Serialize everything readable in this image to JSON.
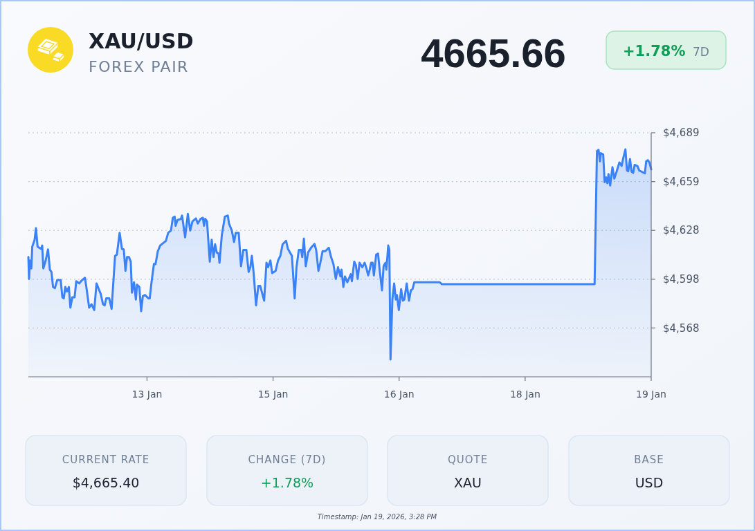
{
  "chart_data": {
    "type": "area",
    "title": "XAU/USD",
    "subtitle": "FOREX PAIR",
    "annotations": [
      "4665.66",
      "+1.78%",
      "7D",
      "CURRENT RATE",
      "$4,665.40",
      "CHANGE (7D)",
      "+1.78%",
      "QUOTE",
      "XAU",
      "BASE",
      "USD",
      "Timestamp: Jan 19, 2026, 3:28 PM"
    ],
    "color": "#3b82f6",
    "x": [
      "2026-01-12T15:28",
      "2026-01-12T15:39",
      "2026-01-12T15:54",
      "2026-01-12T16:16",
      "2026-01-12T16:31",
      "2026-01-12T17:09",
      "2026-01-12T17:31",
      "2026-01-12T17:57",
      "2026-01-12T18:53",
      "2026-01-12T19:12",
      "2026-01-12T19:30",
      "2026-01-12T20:08",
      "2026-01-12T20:46",
      "2026-01-12T21:16",
      "2026-01-12T21:42",
      "2026-01-12T22:07",
      "2026-01-12T22:38",
      "2026-01-12T23:15",
      "2026-01-13T00:11",
      "2026-01-13T00:38",
      "2026-01-13T01:01",
      "2026-01-13T01:26",
      "2026-01-13T01:52",
      "2026-01-13T02:23",
      "2026-01-13T02:48",
      "2026-01-13T03:19",
      "2026-01-13T03:56",
      "2026-01-13T04:23",
      "2026-01-13T05:11",
      "2026-01-13T05:48",
      "2026-01-13T06:44",
      "2026-01-13T07:14",
      "2026-01-13T07:51",
      "2026-01-13T08:29",
      "2026-01-13T09:14",
      "2026-01-13T09:51",
      "2026-01-13T10:28",
      "2026-01-13T10:59",
      "2026-01-13T11:36",
      "2026-01-13T12:03",
      "2026-01-13T12:28",
      "2026-01-13T13:17",
      "2026-01-13T13:55",
      "2026-01-13T14:51",
      "2026-01-13T15:20",
      "2026-01-13T16:05",
      "2026-01-13T16:43",
      "2026-01-13T17:12",
      "2026-01-13T17:39",
      "2026-01-13T18:05",
      "2026-01-13T18:35",
      "2026-01-13T19:05",
      "2026-01-13T19:24",
      "2026-01-13T19:57",
      "2026-01-13T20:28",
      "2026-01-13T20:46",
      "2026-01-13T21:24",
      "2026-01-13T21:53",
      "2026-01-13T22:20",
      "2026-01-13T22:57",
      "2026-01-13T23:53",
      "2026-01-14T00:12",
      "2026-01-14T00:41",
      "2026-01-14T01:20",
      "2026-01-14T01:45",
      "2026-01-14T02:23",
      "2026-01-14T03:01",
      "2026-01-14T03:49",
      "2026-01-14T04:34",
      "2026-01-14T05:11",
      "2026-01-14T05:56",
      "2026-01-14T06:26",
      "2026-01-14T06:56",
      "2026-01-14T07:11",
      "2026-01-14T07:41",
      "2026-01-14T08:37",
      "2026-01-14T08:55",
      "2026-01-14T09:45",
      "2026-01-14T10:29",
      "2026-01-14T11:07",
      "2026-01-14T11:44",
      "2026-01-14T12:40",
      "2026-01-14T13:10",
      "2026-01-14T13:55",
      "2026-01-14T14:32",
      "2026-01-14T14:51",
      "2026-01-14T15:10",
      "2026-01-14T15:39",
      "2026-01-14T16:24",
      "2026-01-14T16:55",
      "2026-01-14T17:25",
      "2026-01-14T17:50",
      "2026-01-14T18:16",
      "2026-01-14T18:47",
      "2026-01-14T19:01",
      "2026-01-14T19:39",
      "2026-01-14T20:28",
      "2026-01-14T21:16",
      "2026-01-14T21:35",
      "2026-01-14T22:20",
      "2026-01-14T22:57",
      "2026-01-14T23:24",
      "2026-01-15T00:12",
      "2026-01-15T00:49",
      "2026-01-15T01:27",
      "2026-01-15T02:16",
      "2026-01-15T02:53",
      "2026-01-15T03:20",
      "2026-01-15T03:45",
      "2026-01-15T04:16",
      "2026-01-15T04:53",
      "2026-01-15T05:30",
      "2026-01-15T06:00",
      "2026-01-15T07:04",
      "2026-01-15T07:41",
      "2026-01-15T08:07",
      "2026-01-15T08:45",
      "2026-01-15T09:14",
      "2026-01-15T10:10",
      "2026-01-15T10:49",
      "2026-01-15T11:26",
      "2026-01-15T12:03",
      "2026-01-15T12:59",
      "2026-01-15T13:29",
      "2026-01-15T14:33",
      "2026-01-15T15:18",
      "2026-01-15T15:47",
      "2026-01-15T16:25",
      "2026-01-15T17:02",
      "2026-01-15T17:21",
      "2026-01-15T17:47",
      "2026-01-15T18:17",
      "2026-01-15T18:55",
      "2026-01-15T19:43",
      "2026-01-15T20:39",
      "2026-01-15T21:06",
      "2026-01-15T21:43",
      "2026-01-15T22:13",
      "2026-01-15T22:50",
      "2026-01-15T23:35",
      "2026-01-16T00:30",
      "2026-01-16T01:07",
      "2026-01-16T01:45",
      "2026-01-16T02:23",
      "2026-01-16T02:59",
      "2026-01-16T03:38",
      "2026-01-16T03:56",
      "2026-01-16T04:26",
      "2026-01-16T04:52",
      "2026-01-16T05:30",
      "2026-01-16T06:26",
      "2026-01-16T06:44",
      "2026-01-16T07:22",
      "2026-01-16T07:48",
      "2026-01-16T08:18",
      "2026-01-16T08:47",
      "2026-01-16T09:32",
      "2026-01-16T10:10",
      "2026-01-16T10:40",
      "2026-01-16T11:07",
      "2026-01-16T11:32",
      "2026-01-16T11:55",
      "2026-01-16T12:20",
      "2026-01-16T12:40",
      "2026-01-16T13:17",
      "2026-01-16T13:47",
      "2026-01-16T14:13",
      "2026-01-16T14:51",
      "2026-01-16T15:17",
      "2026-01-16T15:47",
      "2026-01-16T16:02",
      "2026-01-16T16:32",
      "2026-01-16T16:50",
      "2026-01-16T17:09",
      "2026-01-16T17:39",
      "2026-01-16T18:08",
      "2026-01-16T18:35",
      "2026-01-16T18:53",
      "2026-01-16T19:24",
      "2026-01-16T20:01",
      "2026-01-16T20:28",
      "2026-01-16T20:53",
      "2026-01-16T21:31",
      "2026-01-16T22:08",
      "2026-01-16T22:38",
      "2026-01-16T23:05",
      "2026-01-16T23:34",
      "2026-01-17T06:26",
      "2026-01-17T07:03",
      "2026-01-19T00:12",
      "2026-01-19T00:50",
      "2026-01-19T01:16",
      "2026-01-19T01:39",
      "2026-01-19T01:53",
      "2026-01-19T02:31",
      "2026-01-19T02:54",
      "2026-01-19T03:20",
      "2026-01-19T03:39",
      "2026-01-19T03:57",
      "2026-01-19T04:24",
      "2026-01-19T05:01",
      "2026-01-19T05:31",
      "2026-01-19T06:08",
      "2026-01-19T06:53",
      "2026-01-19T07:30",
      "2026-01-19T07:52",
      "2026-01-19T08:31",
      "2026-01-19T08:56",
      "2026-01-19T09:16",
      "2026-01-19T09:45",
      "2026-01-19T10:11",
      "2026-01-19T10:37",
      "2026-01-19T11:00",
      "2026-01-19T11:45",
      "2026-01-19T12:15",
      "2026-01-19T12:52",
      "2026-01-19T13:45",
      "2026-01-19T14:07",
      "2026-01-19T14:33",
      "2026-01-19T14:59",
      "2026-01-19T15:28"
    ],
    "values": [
      4611.9,
      4598.3,
      4609.7,
      4604.8,
      4618.3,
      4622.6,
      4629.8,
      4618.3,
      4616.9,
      4619.0,
      4604.8,
      4609.7,
      4616.6,
      4604.0,
      4602.6,
      4593.3,
      4592.6,
      4597.6,
      4597.6,
      4586.9,
      4586.2,
      4593.3,
      4590.5,
      4593.3,
      4580.5,
      4586.9,
      4586.9,
      4596.9,
      4595.5,
      4597.2,
      4599.0,
      4591.2,
      4580.5,
      4582.6,
      4579.0,
      4595.5,
      4591.9,
      4589.0,
      4582.6,
      4581.9,
      4586.2,
      4586.2,
      4579.7,
      4612.6,
      4613.3,
      4626.9,
      4616.9,
      4616.6,
      4603.3,
      4611.9,
      4611.9,
      4609.0,
      4589.8,
      4596.2,
      4585.5,
      4594.7,
      4593.3,
      4578.3,
      4587.6,
      4588.3,
      4586.2,
      4586.2,
      4596.2,
      4607.6,
      4607.4,
      4615.5,
      4619.0,
      4620.5,
      4621.9,
      4626.9,
      4628.3,
      4636.2,
      4636.9,
      4631.2,
      4634.8,
      4635.5,
      4637.6,
      4624.1,
      4638.6,
      4628.3,
      4634.0,
      4635.8,
      4632.6,
      4635.5,
      4636.2,
      4631.2,
      4635.5,
      4634.0,
      4609.0,
      4622.6,
      4611.9,
      4619.8,
      4614.7,
      4614.0,
      4608.3,
      4625.5,
      4636.9,
      4637.6,
      4632.6,
      4628.3,
      4621.2,
      4626.9,
      4626.9,
      4606.2,
      4616.2,
      4616.2,
      4602.6,
      4605.5,
      4612.6,
      4601.2,
      4581.9,
      4594.0,
      4594.0,
      4584.8,
      4608.3,
      4605.5,
      4609.7,
      4601.9,
      4603.3,
      4609.7,
      4612.6,
      4619.8,
      4621.9,
      4616.9,
      4612.6,
      4586.2,
      4605.5,
      4616.2,
      4616.2,
      4611.9,
      4623.3,
      4606.2,
      4614.7,
      4617.6,
      4620.0,
      4616.2,
      4603.3,
      4608.3,
      4615.5,
      4615.5,
      4617.6,
      4611.9,
      4607.6,
      4598.3,
      4605.5,
      4599.8,
      4604.0,
      4593.3,
      4599.8,
      4596.2,
      4601.2,
      4596.9,
      4609.0,
      4606.9,
      4598.3,
      4608.3,
      4605.5,
      4608.3,
      4604.8,
      4600.5,
      4604.0,
      4608.3,
      4608.3,
      4600.5,
      4613.3,
      4614.0,
      4604.0,
      4591.2,
      4606.2,
      4608.3,
      4604.0,
      4619.0,
      4616.2,
      4548.3,
      4585.5,
      4595.5,
      4585.5,
      4588.3,
      4579.0,
      4591.9,
      4584.8,
      4585.5,
      4595.5,
      4584.8,
      4591.2,
      4592.0,
      4596.2,
      4596.2,
      4595.0,
      4595.0,
      4677.6,
      4678.3,
      4671.2,
      4676.2,
      4675.5,
      4658.3,
      4661.2,
      4657.6,
      4663.3,
      4656.2,
      4667.6,
      4660.5,
      4664.8,
      4670.5,
      4668.3,
      4672.6,
      4678.6,
      4665.5,
      4665.0,
      4672.6,
      4664.8,
      4664.0,
      4669.0,
      4668.3,
      4665.5,
      4664.8,
      4663.7,
      4671.2,
      4671.9,
      4670.5,
      4666.2
    ],
    "xlim": [
      "2026-01-12T15:28",
      "2026-01-19T15:28"
    ],
    "xticks": [
      {
        "value": "2026-01-13T23:28",
        "label": "13 Jan"
      },
      {
        "value": "2026-01-15T09:28",
        "label": "15 Jan"
      },
      {
        "value": "2026-01-16T19:28",
        "label": "16 Jan"
      },
      {
        "value": "2026-01-18T05:28",
        "label": "18 Jan"
      },
      {
        "value": "2026-01-19T15:28",
        "label": "19 Jan"
      }
    ],
    "ylim": [
      4537.6,
      4688.9
    ],
    "yticks": [
      {
        "value": 4567.9,
        "label": "$4,568"
      },
      {
        "value": 4598.1,
        "label": "$4,598"
      },
      {
        "value": 4628.4,
        "label": "$4,628"
      },
      {
        "value": 4658.6,
        "label": "$4,659"
      },
      {
        "value": 4688.9,
        "label": "$4,689"
      }
    ],
    "grid": "y"
  }
}
